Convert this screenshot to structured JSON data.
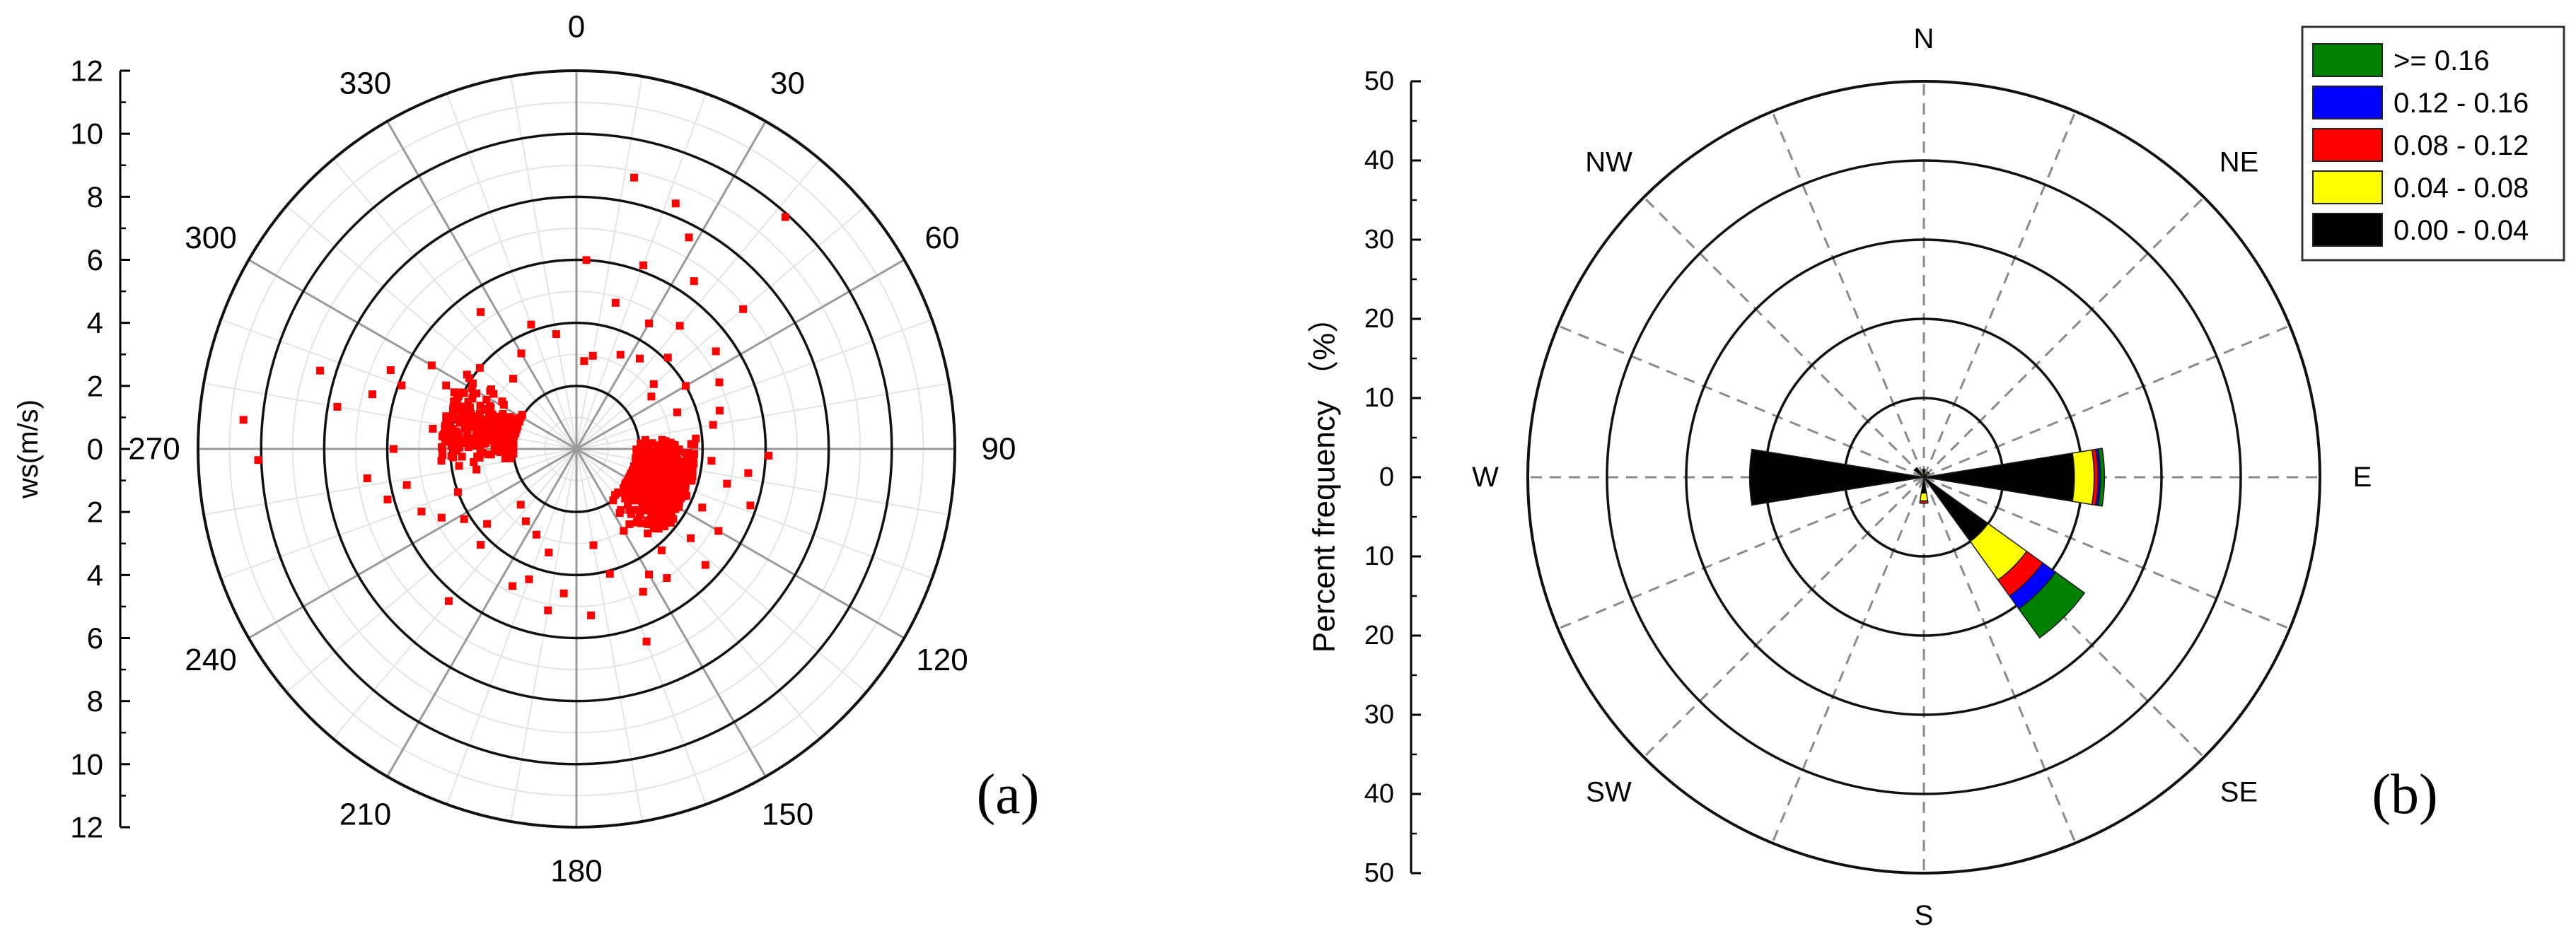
{
  "chart_data": [
    {
      "type": "scatter",
      "panel_label": "(a)",
      "radial_axis_label": "ws(m/s)",
      "radial_ticks": [
        "0",
        "2",
        "4",
        "6",
        "8",
        "10",
        "12"
      ],
      "rlim": [
        0,
        12
      ],
      "angle_ticks": [
        "0",
        "30",
        "60",
        "90",
        "120",
        "150",
        "180",
        "210",
        "240",
        "270",
        "300",
        "330"
      ],
      "angle_unit": "degrees",
      "marker_color": "#ff0000",
      "points": [
        {
          "dir": 12,
          "ws": 8.8
        },
        {
          "dir": 22,
          "ws": 8.4
        },
        {
          "dir": 42,
          "ws": 9.9
        },
        {
          "dir": 28,
          "ws": 7.6
        },
        {
          "dir": 35,
          "ws": 6.5
        },
        {
          "dir": 50,
          "ws": 6.9
        },
        {
          "dir": 3,
          "ws": 6.0
        },
        {
          "dir": 325,
          "ws": 5.3
        },
        {
          "dir": 20,
          "ws": 6.2
        },
        {
          "dir": 55,
          "ws": 5.4
        },
        {
          "dir": 40,
          "ws": 5.1
        },
        {
          "dir": 65,
          "ws": 5.0
        },
        {
          "dir": 30,
          "ws": 4.6
        },
        {
          "dir": 45,
          "ws": 4.1
        },
        {
          "dir": 75,
          "ws": 4.7
        },
        {
          "dir": 60,
          "ws": 4.0
        },
        {
          "dir": 80,
          "ws": 4.4
        },
        {
          "dir": 35,
          "ws": 3.5
        },
        {
          "dir": 50,
          "ws": 3.2
        },
        {
          "dir": 70,
          "ws": 3.4
        },
        {
          "dir": 85,
          "ws": 3.8
        },
        {
          "dir": 25,
          "ws": 3.3
        },
        {
          "dir": 10,
          "ws": 3.0
        },
        {
          "dir": 340,
          "ws": 4.2
        },
        {
          "dir": 350,
          "ws": 3.7
        },
        {
          "dir": 310,
          "ws": 4.0
        },
        {
          "dir": 300,
          "ws": 5.3
        },
        {
          "dir": 293,
          "ws": 6.4
        },
        {
          "dir": 287,
          "ws": 8.5
        },
        {
          "dir": 275,
          "ws": 10.6
        },
        {
          "dir": 268,
          "ws": 10.1
        },
        {
          "dir": 280,
          "ws": 7.7
        },
        {
          "dir": 285,
          "ws": 6.7
        },
        {
          "dir": 290,
          "ws": 5.9
        },
        {
          "dir": 296,
          "ws": 4.6
        },
        {
          "dir": 262,
          "ws": 6.7
        },
        {
          "dir": 255,
          "ws": 6.2
        },
        {
          "dir": 248,
          "ws": 5.3
        },
        {
          "dir": 243,
          "ws": 4.8
        },
        {
          "dir": 250,
          "ws": 4.0
        },
        {
          "dir": 238,
          "ws": 4.2
        },
        {
          "dir": 230,
          "ws": 3.7
        },
        {
          "dir": 225,
          "ws": 4.3
        },
        {
          "dir": 220,
          "ws": 6.3
        },
        {
          "dir": 215,
          "ws": 2.8
        },
        {
          "dir": 200,
          "ws": 4.4
        },
        {
          "dir": 185,
          "ws": 4.6
        },
        {
          "dir": 175,
          "ws": 5.3
        },
        {
          "dir": 165,
          "ws": 4.1
        },
        {
          "dir": 160,
          "ws": 6.5
        },
        {
          "dir": 155,
          "ws": 5.0
        },
        {
          "dir": 150,
          "ws": 4.6
        },
        {
          "dir": 145,
          "ws": 5.0
        },
        {
          "dir": 140,
          "ws": 4.2
        },
        {
          "dir": 132,
          "ws": 5.5
        },
        {
          "dir": 128,
          "ws": 4.6
        },
        {
          "dir": 120,
          "ws": 5.2
        },
        {
          "dir": 115,
          "ws": 4.4
        },
        {
          "dir": 108,
          "ws": 5.8
        },
        {
          "dir": 103,
          "ws": 4.9
        },
        {
          "dir": 98,
          "ws": 5.5
        },
        {
          "dir": 95,
          "ws": 4.3
        },
        {
          "dir": 92,
          "ws": 6.1
        },
        {
          "dir": 100,
          "ws": 3.7
        },
        {
          "dir": 112,
          "ws": 3.5
        },
        {
          "dir": 125,
          "ws": 3.5
        },
        {
          "dir": 135,
          "ws": 3.2
        },
        {
          "dir": 150,
          "ws": 3.0
        },
        {
          "dir": 170,
          "ws": 3.1
        },
        {
          "dir": 195,
          "ws": 3.4
        },
        {
          "dir": 205,
          "ws": 3.0
        },
        {
          "dir": 205,
          "ws": 4.8
        },
        {
          "dir": 190,
          "ws": 5.2
        },
        {
          "dir": 270,
          "ws": 5.8
        },
        {
          "dir": 278,
          "ws": 4.6
        },
        {
          "dir": 265,
          "ws": 4.3
        },
        {
          "dir": 258,
          "ws": 5.5
        },
        {
          "dir": 305,
          "ws": 3.3
        },
        {
          "dir": 318,
          "ws": 3.0
        },
        {
          "dir": 330,
          "ws": 3.5
        },
        {
          "dir": 15,
          "ws": 4.8
        },
        {
          "dir": 5,
          "ws": 2.8
        },
        {
          "dir": 55,
          "ws": 2.9
        },
        {
          "dir": 88,
          "ws": 2.6
        },
        {
          "dir": 140,
          "ws": 2.7
        },
        {
          "dir": 225,
          "ws": 2.5
        },
        {
          "dir": 290,
          "ws": 2.6
        }
      ],
      "clusters": [
        {
          "dir_center": 112,
          "dir_spread": 18,
          "ws_min": 1.9,
          "ws_max": 3.8,
          "count": 650
        },
        {
          "dir_center": 282,
          "dir_spread": 13,
          "ws_min": 2.0,
          "ws_max": 4.3,
          "count": 270
        }
      ]
    },
    {
      "type": "windrose",
      "panel_label": "(b)",
      "ylabel": "Percent frequency （%）",
      "radial_ticks": [
        "0",
        "10",
        "20",
        "30",
        "40",
        "50"
      ],
      "rlim": [
        0,
        50
      ],
      "directions": [
        "N",
        "NE",
        "E",
        "SE",
        "S",
        "SW",
        "W",
        "NW"
      ],
      "sector_count": 16,
      "legend": {
        "placement": "top-right",
        "entries": [
          {
            "label": ">= 0.16",
            "color": "#008000"
          },
          {
            "label": "0.12 - 0.16",
            "color": "#0000ff"
          },
          {
            "label": "0.08 - 0.12",
            "color": "#ff0000"
          },
          {
            "label": "0.04 - 0.08",
            "color": "#ffff00"
          },
          {
            "label": "0.00 - 0.04",
            "color": "#000000"
          }
        ]
      },
      "series": [
        {
          "name": "0.00 - 0.04",
          "color": "#000000",
          "values": [
            1,
            0,
            0.3,
            0,
            19,
            0,
            10,
            0,
            2,
            0,
            0,
            0,
            22,
            0,
            1.5,
            0
          ]
        },
        {
          "name": "0.04 - 0.08",
          "color": "#ffff00",
          "values": [
            0,
            0,
            0.5,
            0,
            2.5,
            0,
            6,
            0,
            1,
            0,
            0,
            0,
            0,
            0,
            0,
            0
          ]
        },
        {
          "name": "0.08 - 0.12",
          "color": "#ff0000",
          "values": [
            0,
            0,
            0,
            0,
            0.5,
            0,
            2.5,
            0,
            0.3,
            0,
            0,
            0,
            0,
            0,
            0,
            0
          ]
        },
        {
          "name": "0.12 - 0.16",
          "color": "#0000ff",
          "values": [
            0,
            0,
            0,
            0,
            0.3,
            0,
            2,
            0,
            0,
            0,
            0,
            0,
            0,
            0,
            0,
            0
          ]
        },
        {
          "name": ">= 0.16",
          "color": "#008000",
          "values": [
            0,
            0,
            0,
            0,
            0.5,
            0,
            4.5,
            0,
            0,
            0,
            0,
            0,
            0,
            0,
            0,
            0
          ]
        }
      ]
    }
  ]
}
